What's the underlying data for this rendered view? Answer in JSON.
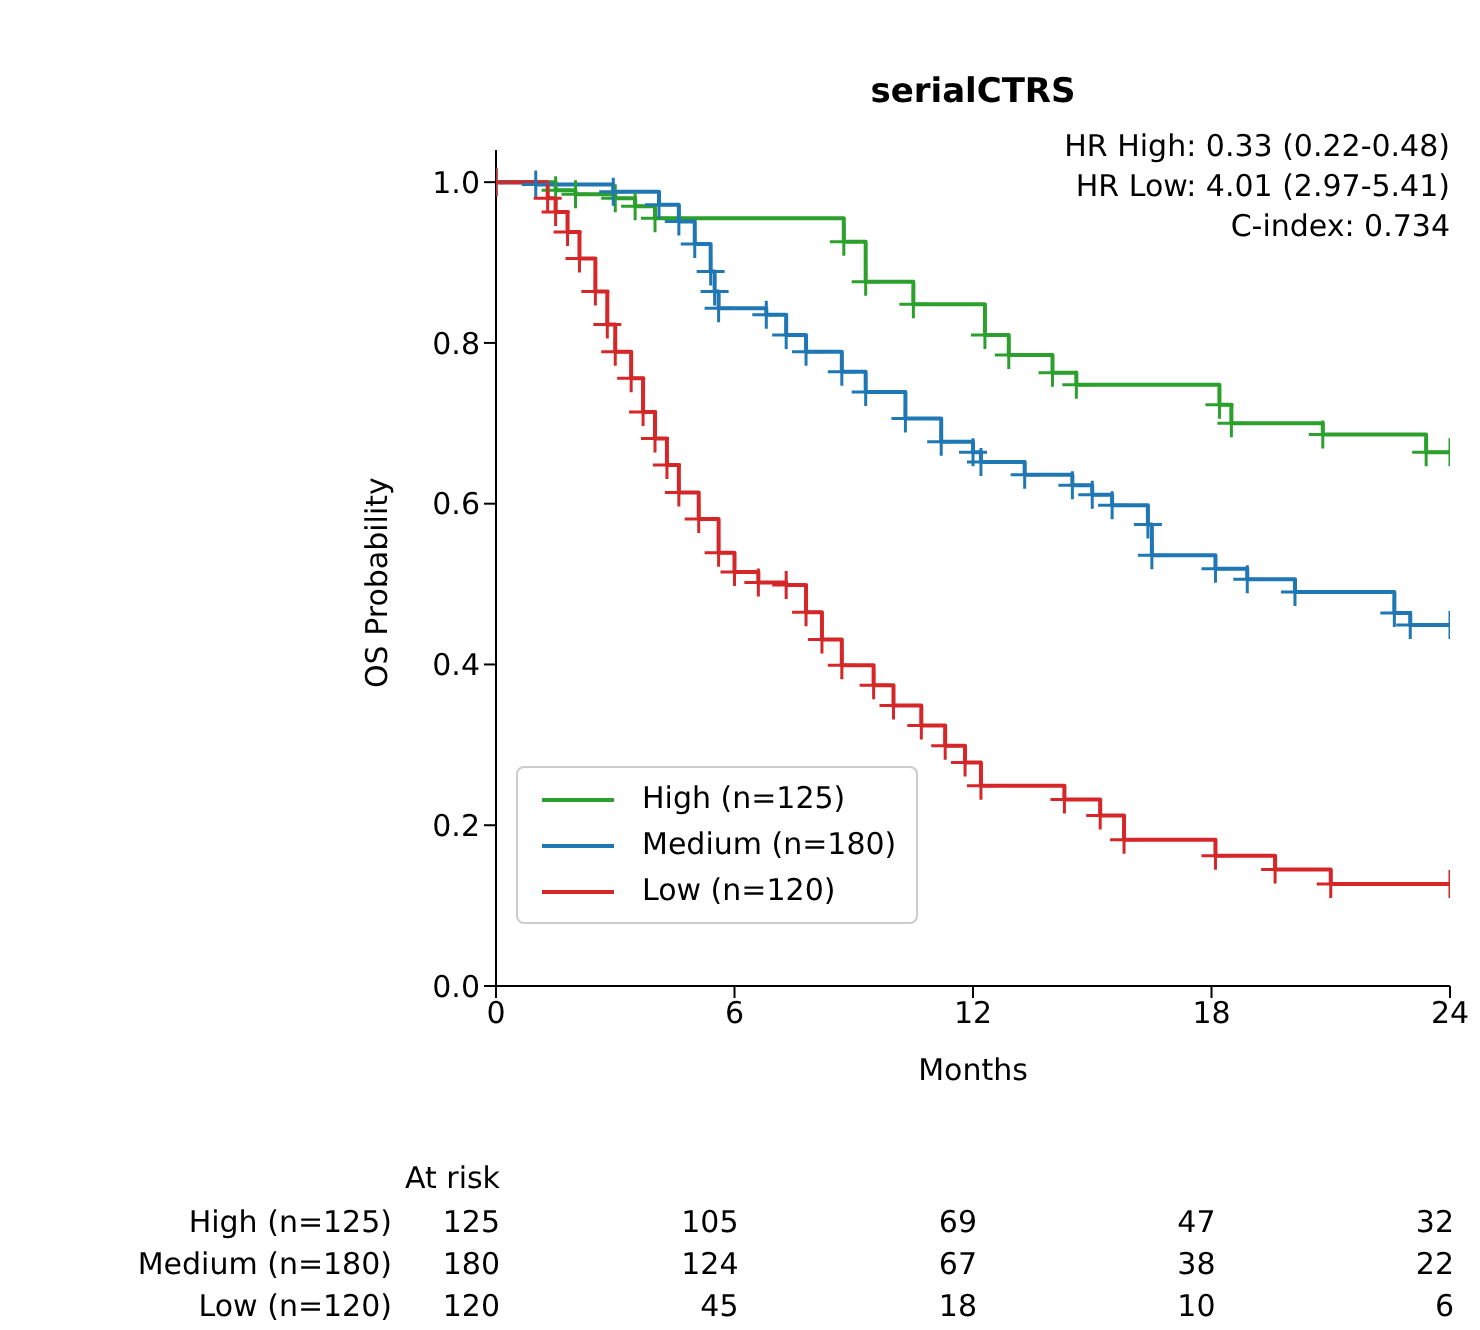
{
  "chart_data": {
    "type": "step",
    "title": "serialCTRS",
    "xlabel": "Months",
    "ylabel": "OS Probability",
    "xlim": [
      0,
      24
    ],
    "xticks": [
      0,
      6,
      12,
      18,
      24
    ],
    "ylim": [
      0,
      1.04
    ],
    "yticks": [
      {
        "value": 0,
        "label": "0.0"
      },
      0.2,
      0.4,
      0.6,
      0.8,
      {
        "value": 1,
        "label": "1.0"
      }
    ],
    "grid": false,
    "legend": "bottom left",
    "marker": "cross",
    "line_style": "solid",
    "series": [
      {
        "name": "High (n=125)",
        "color": "#2ca02c",
        "x": [
          0,
          1.5,
          2,
          3,
          3.5,
          4,
          8.75,
          9.3,
          10.5,
          12.3,
          12.9,
          14.0,
          14.6,
          18.2,
          18.5,
          20.8,
          23.4,
          24
        ],
        "values": [
          1.0,
          0.99,
          0.985,
          0.98,
          0.97,
          0.955,
          0.926,
          0.876,
          0.848,
          0.81,
          0.785,
          0.763,
          0.748,
          0.723,
          0.7,
          0.686,
          0.664,
          0.664
        ]
      },
      {
        "name": "Medium (n=180)",
        "color": "#1f77b4",
        "x": [
          0,
          1,
          2.95,
          4.1,
          4.6,
          5.0,
          5.4,
          5.5,
          5.6,
          6.8,
          7.3,
          7.8,
          8.7,
          9.3,
          10.3,
          11.2,
          12.0,
          12.2,
          13.3,
          14.5,
          15.0,
          15.5,
          16.4,
          16.5,
          18.1,
          18.9,
          20.1,
          22.6,
          23.0,
          24
        ],
        "values": [
          1.0,
          0.997,
          0.988,
          0.972,
          0.951,
          0.923,
          0.889,
          0.864,
          0.843,
          0.835,
          0.81,
          0.789,
          0.764,
          0.739,
          0.706,
          0.677,
          0.664,
          0.652,
          0.636,
          0.623,
          0.611,
          0.598,
          0.574,
          0.536,
          0.519,
          0.506,
          0.49,
          0.464,
          0.449,
          0.449
        ]
      },
      {
        "name": "Low (n=120)",
        "color": "#d62728",
        "x": [
          0,
          1.3,
          1.5,
          1.8,
          2.1,
          2.5,
          2.8,
          3.0,
          3.4,
          3.7,
          4.0,
          4.3,
          4.6,
          5.1,
          5.6,
          6.0,
          6.6,
          7.3,
          7.8,
          8.2,
          8.7,
          9.5,
          10.0,
          10.7,
          11.3,
          11.8,
          12.2,
          14.3,
          15.2,
          15.8,
          18.1,
          19.6,
          21.0,
          24
        ],
        "values": [
          1.0,
          0.98,
          0.963,
          0.938,
          0.905,
          0.864,
          0.823,
          0.789,
          0.756,
          0.714,
          0.681,
          0.648,
          0.614,
          0.581,
          0.539,
          0.515,
          0.502,
          0.499,
          0.465,
          0.431,
          0.399,
          0.374,
          0.349,
          0.324,
          0.299,
          0.278,
          0.249,
          0.232,
          0.212,
          0.182,
          0.162,
          0.145,
          0.127,
          0.127
        ]
      }
    ],
    "annotations": [
      "HR High: 0.33 (0.22-0.48)",
      "HR Low: 4.01 (2.97-5.41)",
      "C-index: 0.734",
      "At risk",
      "High (n=125)",
      "125",
      "105",
      "69",
      "47",
      "32",
      "Medium (n=180)",
      "180",
      "124",
      "67",
      "38",
      "22",
      "Low (n=120)",
      "120",
      "45",
      "18",
      "10",
      "6"
    ]
  }
}
